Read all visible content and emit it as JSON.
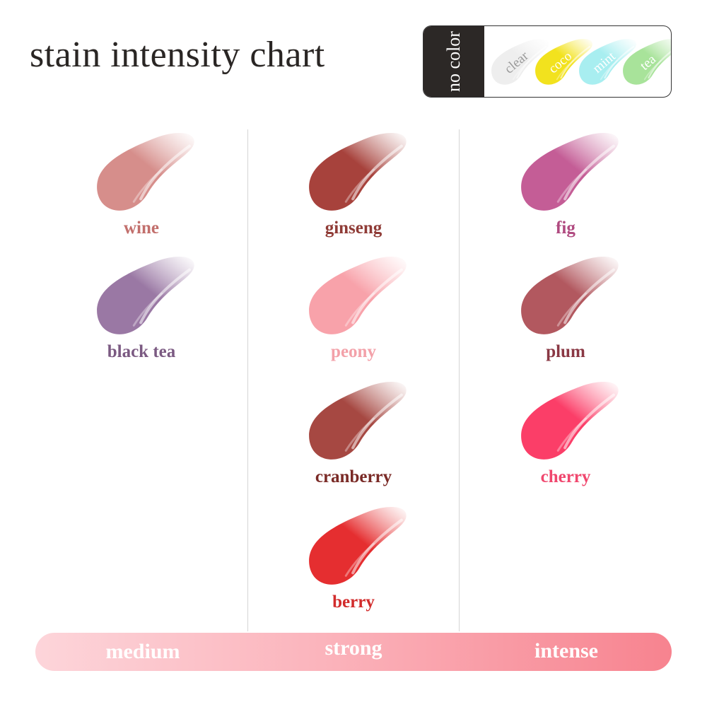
{
  "title": "stain intensity chart",
  "no_color": {
    "label": "no color",
    "items": [
      {
        "name": "clear",
        "color": "#eeeeee",
        "text_color": "#9a9a9a"
      },
      {
        "name": "coco",
        "color": "#f2e21e",
        "text_color": "#ffffff"
      },
      {
        "name": "mint",
        "color": "#a8eef0",
        "text_color": "#ffffff"
      },
      {
        "name": "tea",
        "color": "#a8e39a",
        "text_color": "#ffffff"
      }
    ]
  },
  "columns": [
    {
      "intensity": "medium",
      "items": [
        {
          "name": "wine",
          "color": "#d68e8b",
          "label_color": "#c26f6c"
        },
        {
          "name": "black tea",
          "color": "#9a78a4",
          "label_color": "#7b5a82"
        }
      ]
    },
    {
      "intensity": "strong",
      "items": [
        {
          "name": "ginseng",
          "color": "#a7423c",
          "label_color": "#8f3b36"
        },
        {
          "name": "peony",
          "color": "#f8a2aa",
          "label_color": "#f3a1a9"
        },
        {
          "name": "cranberry",
          "color": "#a64842",
          "label_color": "#7a2a26"
        },
        {
          "name": "berry",
          "color": "#e52e30",
          "label_color": "#d22c2c"
        }
      ]
    },
    {
      "intensity": "intense",
      "items": [
        {
          "name": "fig",
          "color": "#c45d96",
          "label_color": "#b04a80"
        },
        {
          "name": "plum",
          "color": "#b2585f",
          "label_color": "#8a3844"
        },
        {
          "name": "cherry",
          "color": "#fb3e68",
          "label_color": "#f0476e"
        }
      ]
    }
  ],
  "scale": [
    "medium",
    "strong",
    "intense"
  ]
}
